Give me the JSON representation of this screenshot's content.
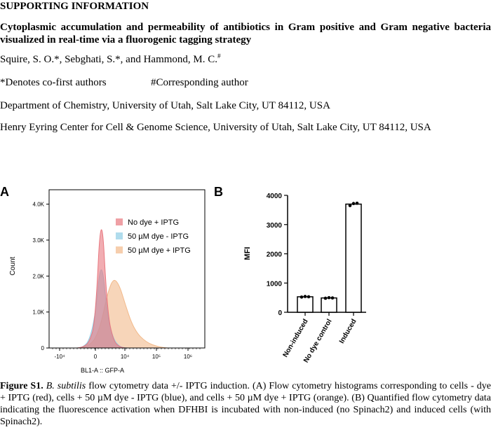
{
  "header": "SUPPORTING INFORMATION",
  "title": "Cytoplasmic accumulation and permeability of antibiotics in Gram positive and Gram negative bacteria visualized in real-time via a fluorogenic tagging strategy",
  "authors": {
    "text": "Squire, S. O.*, Sebghati, S.*, and Hammond, M. C.",
    "mark": "#"
  },
  "notes": {
    "cofirst": "*Denotes co-first authors",
    "corresponding": "#Corresponding author"
  },
  "affiliations": [
    "Department of Chemistry, University of Utah, Salt Lake City, UT 84112, USA",
    "Henry Eyring Center for Cell & Genome Science, University of Utah, Salt Lake City, UT 84112, USA"
  ],
  "figure": {
    "panel_a_label": "A",
    "panel_b_label": "B"
  },
  "chart_data": [
    {
      "type": "area",
      "panel": "A",
      "xlabel": "BL1-A :: GFP-A",
      "ylabel": "Count",
      "x_ticks": [
        "-10⁴",
        "0",
        "10⁴",
        "10⁵",
        "10⁶"
      ],
      "y_ticks": [
        "0",
        "1.0K",
        "2.0K",
        "3.0K",
        "4.0K"
      ],
      "ylim": [
        0,
        4400
      ],
      "legend_position": "top-right",
      "x": [
        -0.8,
        -0.6,
        -0.4,
        -0.2,
        0,
        0.2,
        0.4,
        0.6,
        0.8,
        1.0,
        1.2,
        1.4,
        1.6,
        1.8,
        2.0,
        2.2
      ],
      "series": [
        {
          "name": "No dye + IPTG",
          "color": "#e8777f",
          "values": [
            0,
            30,
            150,
            700,
            4100,
            1000,
            200,
            30,
            0,
            0,
            0,
            0,
            0,
            0,
            0,
            0
          ]
        },
        {
          "name": "50 µM dye - IPTG",
          "color": "#8fcde6",
          "values": [
            0,
            30,
            200,
            900,
            2600,
            900,
            250,
            40,
            0,
            0,
            0,
            0,
            0,
            0,
            0,
            0
          ]
        },
        {
          "name": "50 µM dye + IPTG",
          "color": "#f2b98a",
          "values": [
            0,
            20,
            80,
            250,
            700,
            1500,
            1950,
            1750,
            1200,
            700,
            400,
            230,
            120,
            60,
            20,
            0
          ]
        }
      ]
    },
    {
      "type": "bar",
      "panel": "B",
      "categories": [
        "Non-induced",
        "No dye control",
        "Induced"
      ],
      "values": [
        530,
        490,
        3700
      ],
      "points": [
        [
          520,
          540,
          530
        ],
        [
          480,
          500,
          490
        ],
        [
          3650,
          3720,
          3730
        ]
      ],
      "ylabel": "MFI",
      "ylim": [
        0,
        4000
      ],
      "y_ticks": [
        "0",
        "1000",
        "2000",
        "3000",
        "4000"
      ]
    }
  ],
  "caption": {
    "label": "Figure S1.",
    "organism": "B. subtilis",
    "text": " flow cytometry data +/- IPTG induction. (A) Flow cytometry histograms corresponding to cells - dye + IPTG (red), cells + 50 µM dye - IPTG (blue), and cells + 50 µM dye + IPTG (orange). (B) Quantified flow cytometry data indicating the fluorescence activation when DFHBI is incubated with non-induced (no Spinach2) and induced cells (with Spinach2)."
  }
}
